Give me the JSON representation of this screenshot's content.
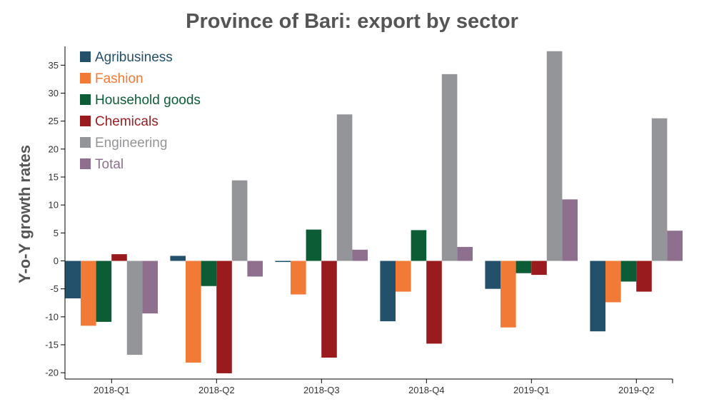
{
  "chart_data": {
    "type": "bar",
    "title": "Province of Bari: export by sector",
    "xlabel": "",
    "ylabel": "Y-o-Y growth rates",
    "ylim": [
      -21,
      39
    ],
    "yticks": [
      -20,
      -15,
      -10,
      -5,
      0,
      5,
      10,
      15,
      20,
      25,
      30,
      35
    ],
    "categories": [
      "2018-Q1",
      "2018-Q2",
      "2018-Q3",
      "2018-Q4",
      "2019-Q1",
      "2019-Q2"
    ],
    "legend_position": "top-left",
    "grid": false,
    "series": [
      {
        "name": "Agribusiness",
        "color": "#23506a",
        "values": [
          -6.7,
          0.9,
          -0.2,
          -10.8,
          -5.0,
          -12.6
        ]
      },
      {
        "name": "Fashion",
        "color": "#f07a36",
        "values": [
          -11.6,
          -18.2,
          -6.0,
          -5.5,
          -11.9,
          -7.4
        ]
      },
      {
        "name": "Household goods",
        "color": "#0c5d35",
        "values": [
          -10.9,
          -4.5,
          5.6,
          5.5,
          -2.2,
          -3.7
        ]
      },
      {
        "name": "Chemicals",
        "color": "#9a1b1e",
        "values": [
          1.2,
          -20.1,
          -17.3,
          -14.8,
          -2.5,
          -5.5
        ]
      },
      {
        "name": "Engineering",
        "color": "#939598",
        "values": [
          -16.8,
          14.4,
          26.2,
          33.4,
          37.5,
          25.5
        ]
      },
      {
        "name": "Total",
        "color": "#8e6f8e",
        "values": [
          -9.4,
          -2.8,
          2.0,
          2.5,
          11.0,
          5.4
        ]
      }
    ]
  }
}
